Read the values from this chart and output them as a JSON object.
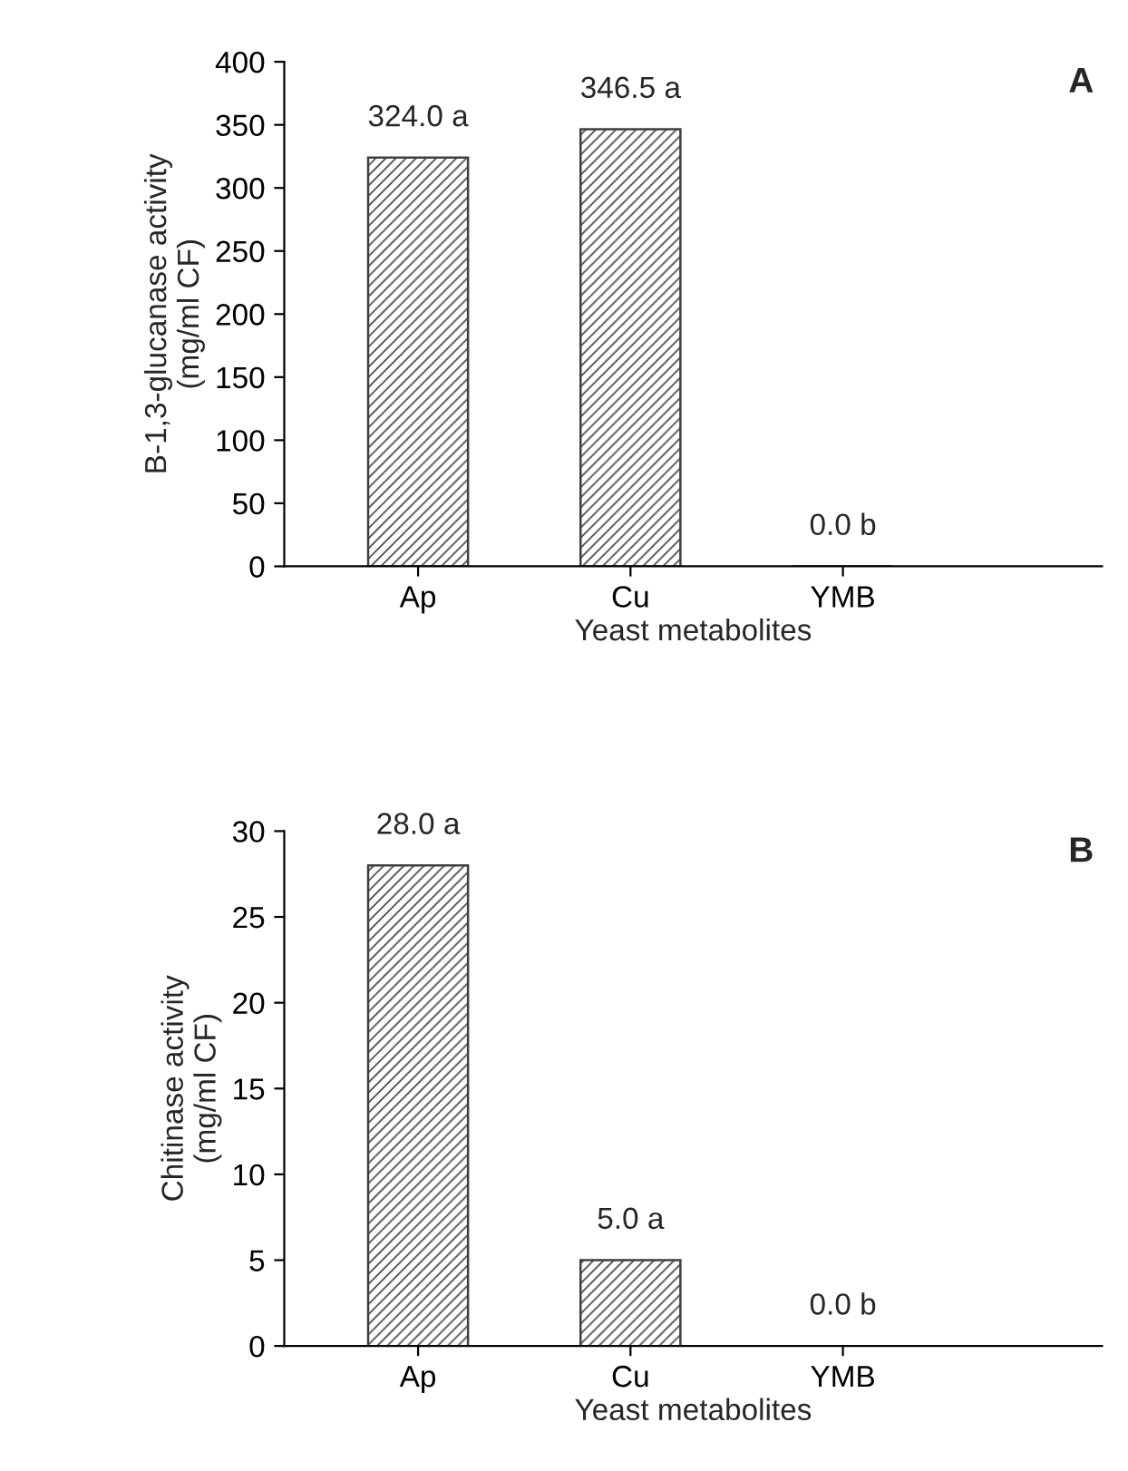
{
  "chart_data": [
    {
      "type": "bar",
      "categories": [
        "Ap",
        "Cu",
        "YMB"
      ],
      "values": [
        324.0,
        346.5,
        0.0
      ],
      "value_labels": [
        "324.0 a",
        "346.5 a",
        "0.0 b"
      ],
      "color": "#404040",
      "xlabel": "Yeast metabolites",
      "ylabel": "B-1,3-glucanase activity\n(mg/ml CF)",
      "ylim": [
        0,
        400
      ],
      "yticks": [
        0,
        50,
        100,
        150,
        200,
        250,
        300,
        350,
        400
      ],
      "annotations": [
        "A"
      ],
      "grid": false,
      "legend": false
    },
    {
      "type": "bar",
      "categories": [
        "Ap",
        "Cu",
        "YMB"
      ],
      "values": [
        28.0,
        5.0,
        0.0
      ],
      "value_labels": [
        "28.0 a",
        "5.0 a",
        "0.0 b"
      ],
      "color": "#404040",
      "xlabel": "Yeast metabolites",
      "ylabel": "Chitinase activity\n(mg/ml CF)",
      "ylim": [
        0,
        30
      ],
      "yticks": [
        0,
        5,
        10,
        15,
        20,
        25,
        30
      ],
      "annotations": [
        "B"
      ],
      "grid": false,
      "legend": false
    }
  ]
}
